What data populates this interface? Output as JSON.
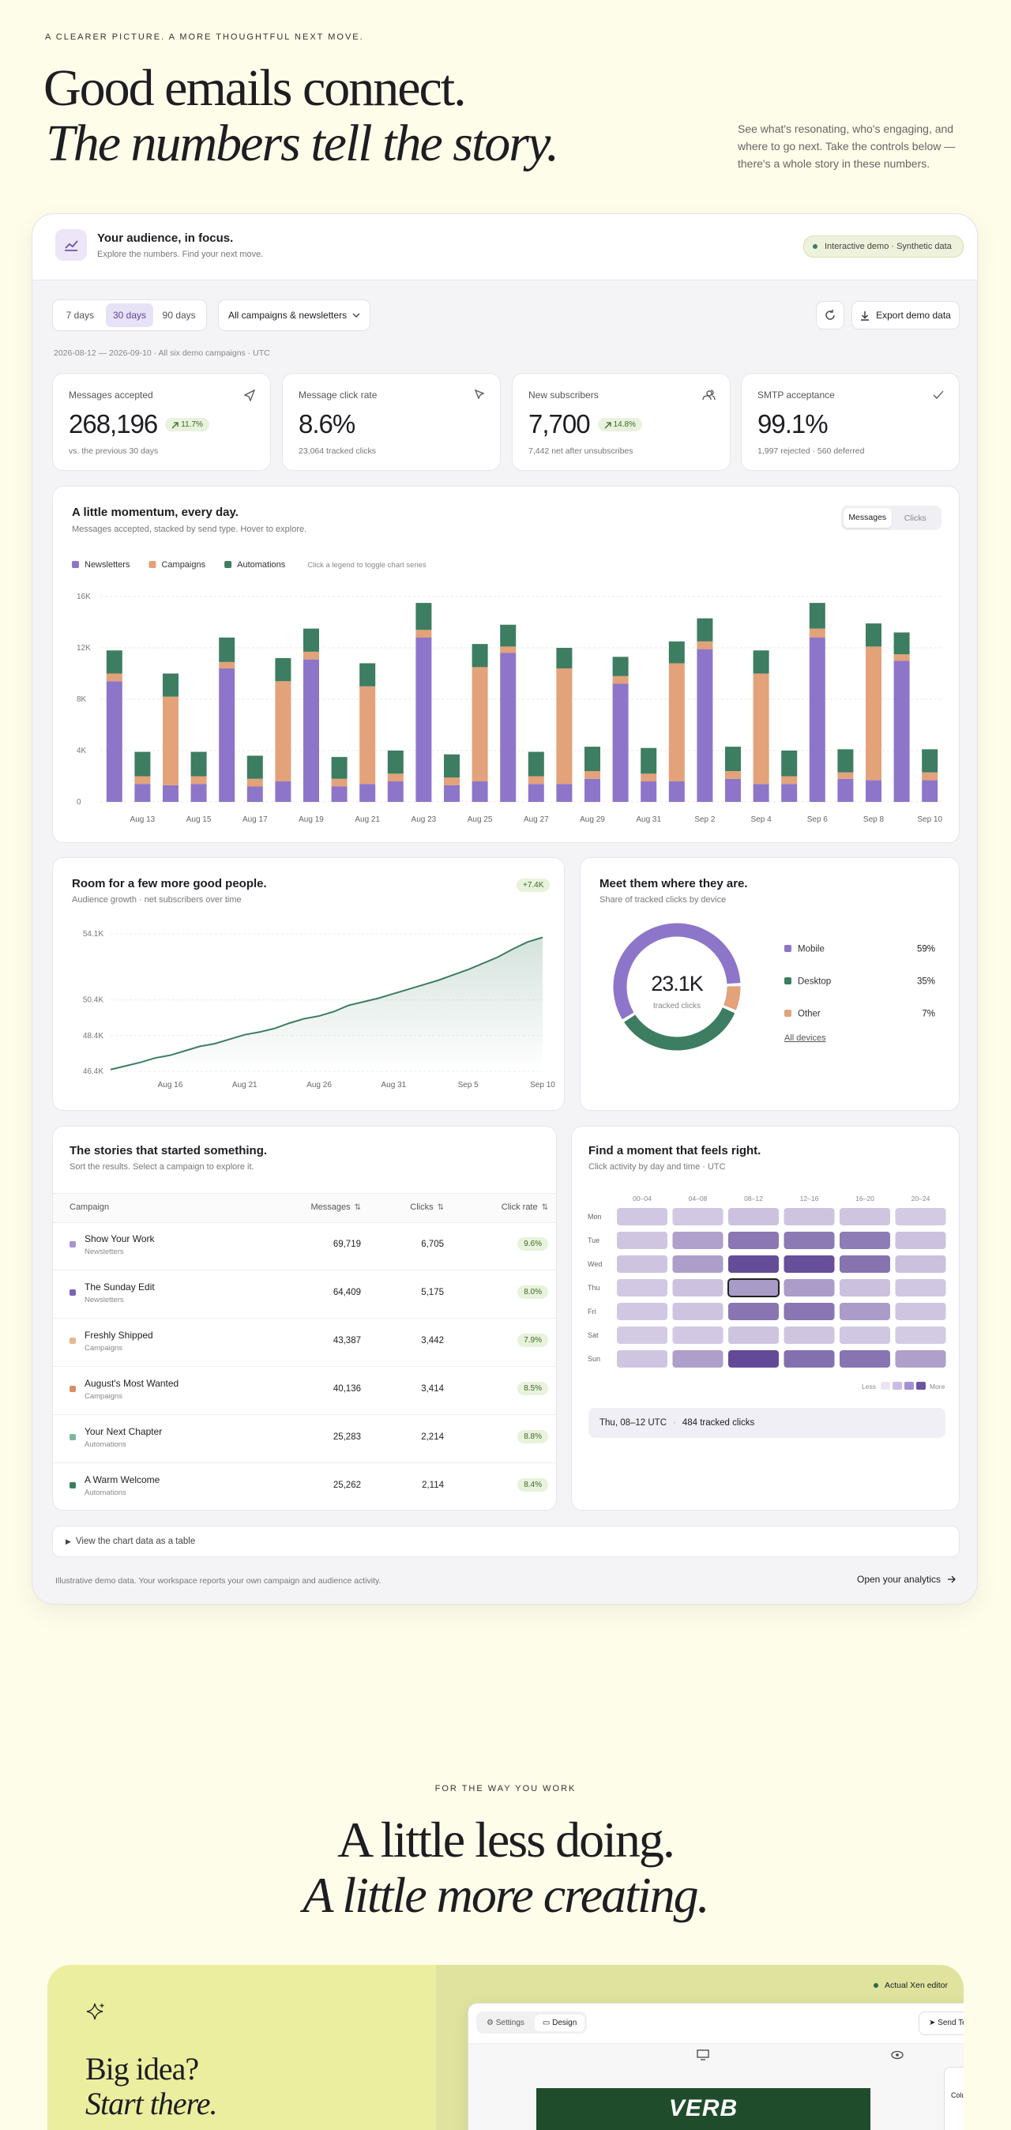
{
  "header": {
    "eyebrow": "A CLEARER PICTURE. A MORE THOUGHTFUL NEXT MOVE.",
    "line1": "Good emails connect.",
    "line2": "The numbers tell the story.",
    "intro": "See what's resonating, who's engaging, and where to go next. Take the controls below — there's a whole story in these numbers."
  },
  "dashboard": {
    "title": "Your audience, in focus.",
    "subtitle": "Explore the numbers. Find your next move.",
    "badge": "Interactive demo · Synthetic data",
    "ranges": [
      "7 days",
      "30 days",
      "90 days"
    ],
    "filter": "All campaigns & newsletters",
    "export": "Export demo data",
    "date_range": "2026-08-12 — 2026-09-10 · All six demo campaigns · UTC",
    "disclosure": "View the chart data as a table",
    "footnote": "Illustrative demo data. Your workspace reports your own campaign and audience activity.",
    "cta": "Open your analytics",
    "kpis": [
      {
        "label": "Messages accepted",
        "value": "268,196",
        "delta": "11.7%",
        "note": "vs. the previous 30 days"
      },
      {
        "label": "Message click rate",
        "value": "8.6%",
        "note": "23,064 tracked clicks"
      },
      {
        "label": "New subscribers",
        "value": "7,700",
        "delta": "14.8%",
        "note": "7,442 net after unsubscribes"
      },
      {
        "label": "SMTP acceptance",
        "value": "99.1%",
        "note": "1,997 rejected · 560 deferred"
      }
    ]
  },
  "momentum": {
    "title": "A little momentum, every day.",
    "subtitle": "Messages accepted, stacked by send type. Hover to explore.",
    "toggles": [
      "Messages",
      "Clicks"
    ],
    "hint": "Click a legend to toggle chart series",
    "chart": {
      "type": "bar",
      "stacked": true,
      "grid": true,
      "categories": [
        null,
        "Aug 13",
        null,
        "Aug 15",
        null,
        "Aug 17",
        null,
        "Aug 19",
        null,
        "Aug 21",
        null,
        "Aug 23",
        null,
        "Aug 25",
        null,
        "Aug 27",
        null,
        "Aug 29",
        null,
        "Aug 31",
        null,
        "Sep 2",
        null,
        "Sep 4",
        null,
        "Sep 6",
        null,
        "Sep 8",
        null,
        "Sep 10"
      ],
      "series": [
        {
          "name": "Newsletters",
          "color": "#8d76c9",
          "values": [
            9400,
            1400,
            1300,
            1400,
            10400,
            1200,
            1600,
            11100,
            1200,
            1400,
            1600,
            12800,
            1300,
            1600,
            11600,
            1400,
            1400,
            1800,
            9200,
            1600,
            1600,
            11900,
            1800,
            1400,
            1400,
            12800,
            1800,
            1700,
            11000,
            1700
          ]
        },
        {
          "name": "Campaigns",
          "color": "#e3a27a",
          "values": [
            600,
            600,
            6900,
            600,
            500,
            600,
            7800,
            600,
            600,
            7600,
            600,
            600,
            600,
            8900,
            500,
            600,
            9000,
            600,
            600,
            600,
            9200,
            600,
            600,
            8600,
            600,
            700,
            500,
            10400,
            500,
            600
          ]
        },
        {
          "name": "Automations",
          "color": "#3d7d62",
          "values": [
            1800,
            1900,
            1800,
            1900,
            1900,
            1800,
            1800,
            1800,
            1700,
            1800,
            1800,
            2100,
            1800,
            1800,
            1700,
            1900,
            1600,
            1900,
            1500,
            2000,
            1700,
            1800,
            1900,
            1800,
            2000,
            2000,
            1800,
            1800,
            1700,
            1800
          ]
        }
      ],
      "ylim": [
        0,
        16000
      ],
      "yticks": [
        0,
        {
          "value": 4000,
          "label": "4K"
        },
        {
          "value": 8000,
          "label": "8K"
        },
        {
          "value": 12000,
          "label": "12K"
        },
        {
          "value": 16000,
          "label": "16K"
        }
      ]
    }
  },
  "growth": {
    "title": "Room for a few more good people.",
    "subtitle": "Audience growth · net subscribers over time",
    "badge": "+7.4K",
    "chart": {
      "type": "line",
      "grid": true,
      "color": "#3d7d62",
      "categories": [
        null,
        null,
        null,
        null,
        "Aug 16",
        null,
        null,
        null,
        null,
        "Aug 21",
        null,
        null,
        null,
        null,
        "Aug 26",
        null,
        null,
        null,
        null,
        "Aug 31",
        null,
        null,
        null,
        null,
        "Sep 5",
        null,
        null,
        null,
        null,
        "Sep 10"
      ],
      "values": [
        46500,
        46700,
        46900,
        47150,
        47300,
        47550,
        47800,
        47950,
        48200,
        48450,
        48600,
        48800,
        49100,
        49350,
        49500,
        49750,
        50100,
        50300,
        50500,
        50750,
        51000,
        51250,
        51500,
        51800,
        52100,
        52450,
        52800,
        53250,
        53650,
        53900
      ],
      "ylim": [
        46400,
        54100
      ],
      "yticks": [
        {
          "value": 46400,
          "label": "46.4K"
        },
        {
          "value": 48400,
          "label": "48.4K"
        },
        {
          "value": 50400,
          "label": "50.4K"
        },
        {
          "value": 54100,
          "label": "54.1K"
        }
      ]
    }
  },
  "devices": {
    "title": "Meet them where they are.",
    "subtitle": "Share of tracked clicks by device",
    "center_value": "23.1K",
    "center_label": "tracked clicks",
    "link": "All devices",
    "chart": {
      "type": "pie",
      "categories": [
        "Mobile",
        "Desktop",
        "Other"
      ],
      "values": [
        59,
        35,
        7
      ],
      "value_labels": [
        "59%",
        "35%",
        "7%"
      ],
      "colors": [
        "#8d76c9",
        "#3d7d62",
        "#e3a27a"
      ]
    }
  },
  "table": {
    "title": "The stories that started something.",
    "subtitle": "Sort the results. Select a campaign to explore it.",
    "columns": [
      "Campaign",
      "Messages",
      "Clicks",
      "Click rate"
    ],
    "rows": [
      [
        "Show Your Work",
        "Newsletters",
        "69,719",
        "6,705",
        "9.6%"
      ],
      [
        "The Sunday Edit",
        "Newsletters",
        "64,409",
        "5,175",
        "8.0%"
      ],
      [
        "Freshly Shipped",
        "Campaigns",
        "43,387",
        "3,442",
        "7.9%"
      ],
      [
        "August's Most Wanted",
        "Campaigns",
        "40,136",
        "3,414",
        "8.5%"
      ],
      [
        "Your Next Chapter",
        "Automations",
        "25,283",
        "2,214",
        "8.8%"
      ],
      [
        "A Warm Welcome",
        "Automations",
        "25,262",
        "2,114",
        "8.4%"
      ]
    ],
    "dot_colors": [
      "#a893d6",
      "#7c62b8",
      "#eab58e",
      "#d98e63",
      "#7fb79b",
      "#3d7d62"
    ]
  },
  "heatmap": {
    "title": "Find a moment that feels right.",
    "subtitle": "Click activity by day and time · UTC",
    "columns": [
      "00–04",
      "04–08",
      "08–12",
      "12–16",
      "16–20",
      "20–24"
    ],
    "rows": [
      "Mon",
      "Tue",
      "Wed",
      "Thu",
      "Fri",
      "Sat",
      "Sun"
    ],
    "values": [
      [
        160,
        150,
        190,
        180,
        170,
        140
      ],
      [
        170,
        430,
        780,
        760,
        740,
        190
      ],
      [
        180,
        460,
        1180,
        1150,
        820,
        200
      ],
      [
        150,
        190,
        484,
        470,
        200,
        160
      ],
      [
        160,
        180,
        800,
        790,
        480,
        170
      ],
      [
        140,
        150,
        180,
        170,
        160,
        140
      ],
      [
        170,
        450,
        1200,
        850,
        810,
        440
      ]
    ],
    "less": "Less",
    "more": "More",
    "selected_slot": "Thu, 08–12 UTC",
    "selected_value": "484 tracked clicks"
  },
  "section": {
    "eyebrow": "FOR THE WAY YOU WORK",
    "line1": "A little less doing.",
    "line2": "A little more creating."
  },
  "promo": {
    "line1": "Big idea?",
    "line2": "Start there.",
    "badge": "Actual Xen editor",
    "tabs": [
      "Settings",
      "Design"
    ],
    "send": "Send Test",
    "logo": "VERB",
    "panel": "Columns"
  }
}
